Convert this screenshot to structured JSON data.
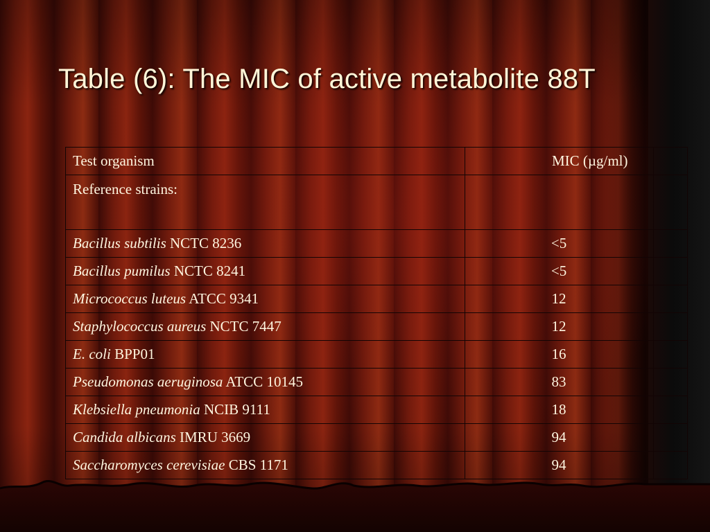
{
  "slide": {
    "title": "Table (6): The MIC of active metabolite 88T"
  },
  "table": {
    "header": {
      "organism": "Test organism",
      "mic": "MIC (µg/ml)"
    },
    "section_label": "Reference strains:",
    "rows": [
      {
        "species": "Bacillus subtilis",
        "strain": "NCTC 8236",
        "mic": "<5"
      },
      {
        "species": "Bacillus pumilus",
        "strain": "NCTC 8241",
        "mic": "<5"
      },
      {
        "species": "Micrococcus luteus",
        "strain": "ATCC 9341",
        "mic": "12"
      },
      {
        "species": "Staphylococcus aureus",
        "strain": "NCTC 7447",
        "mic": "12"
      },
      {
        "species": "E. coli",
        "strain": "BPP01",
        "mic": "16"
      },
      {
        "species": "Pseudomonas aeruginosa",
        "strain": "ATCC 10145",
        "mic": "83"
      },
      {
        "species": "Klebsiella pneumonia",
        "strain": "NCIB 9111",
        "mic": "18"
      },
      {
        "species": "Candida albicans",
        "strain": "IMRU 3669",
        "mic": "94"
      },
      {
        "species": "Saccharomyces cerevisiae",
        "strain": "CBS 1171",
        "mic": "94"
      }
    ]
  },
  "colors": {
    "text": "#fff6e0",
    "curtain": "#7a1e0e",
    "border": "#120404"
  }
}
